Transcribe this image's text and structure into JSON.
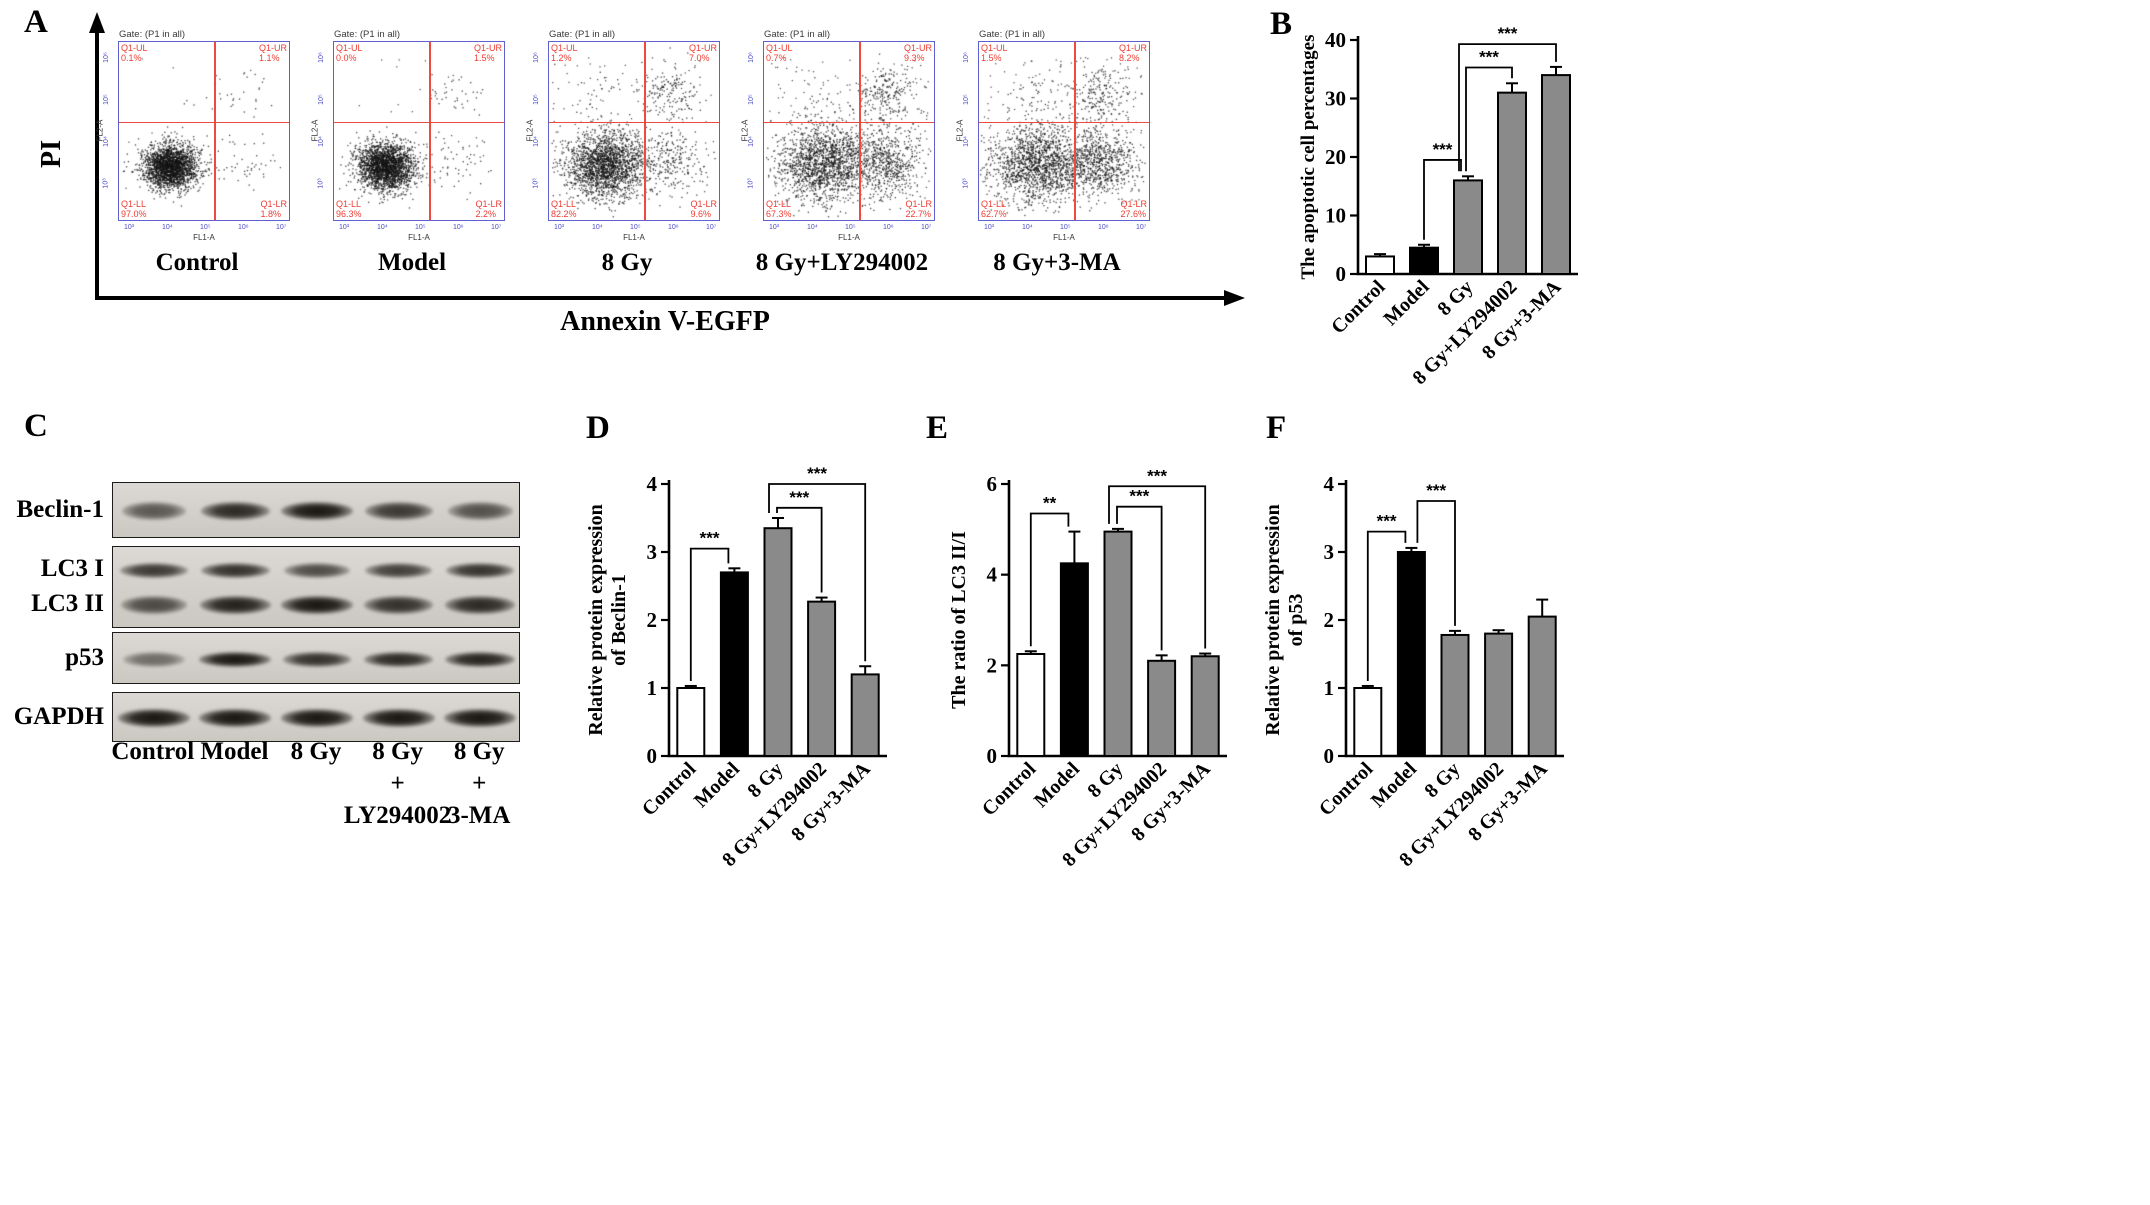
{
  "colors": {
    "flow_border": "#6060cf",
    "flow_tick": "#4b4bc8",
    "flow_quadrant_red": "#ef3b31",
    "bar_white": "#ffffff",
    "bar_black": "#000000",
    "bar_gray": "#8a8a8a"
  },
  "panel_a": {
    "label": "A",
    "y_axis_label": "PI",
    "x_axis_label": "Annexin V-EGFP",
    "gate_label": "Gate: (P1 in all)",
    "flow_y_ticks": [
      "10⁶",
      "10⁵",
      "10⁴",
      "10³"
    ],
    "flow_x_ticks": [
      "10³",
      "10⁴",
      "10⁵",
      "10⁶",
      "10⁷"
    ],
    "plots": [
      {
        "name": "Control",
        "x_label": "FL1-A",
        "y_label": "FL2-A",
        "ul": "Q1-UL",
        "ul_pct": "0.1%",
        "ur": "Q1-UR",
        "ur_pct": "1.1%",
        "ll": "Q1-LL",
        "ll_pct": "97.0%",
        "lr": "Q1-LR",
        "lr_pct": "1.8%",
        "pcts": {
          "ul": 0.1,
          "ur": 1.1,
          "ll": 97.0,
          "lr": 1.8
        },
        "spread": 1.0,
        "seed": 11
      },
      {
        "name": "Model",
        "x_label": "FL1-A",
        "y_label": "FL2-A",
        "ul": "Q1-UL",
        "ul_pct": "0.0%",
        "ur": "Q1-UR",
        "ur_pct": "1.5%",
        "ll": "Q1-LL",
        "ll_pct": "96.3%",
        "lr": "Q1-LR",
        "lr_pct": "2.2%",
        "pcts": {
          "ul": 0.0,
          "ur": 1.5,
          "ll": 96.3,
          "lr": 2.2
        },
        "spread": 1.05,
        "seed": 22
      },
      {
        "name": "8 Gy",
        "x_label": "FL1-A",
        "y_label": "FL2-A",
        "ul": "Q1-UL",
        "ul_pct": "1.2%",
        "ur": "Q1-UR",
        "ur_pct": "7.0%",
        "ll": "Q1-LL",
        "ll_pct": "82.2%",
        "lr": "Q1-LR",
        "lr_pct": "9.6%",
        "pcts": {
          "ul": 1.2,
          "ur": 7.0,
          "ll": 82.2,
          "lr": 9.6
        },
        "spread": 1.45,
        "seed": 33
      },
      {
        "name": "8 Gy+LY294002",
        "x_label": "FL1-A",
        "y_label": "FL2-A",
        "ul": "Q1-UL",
        "ul_pct": "0.7%",
        "ur": "Q1-UR",
        "ur_pct": "9.3%",
        "ll": "Q1-LL",
        "ll_pct": "67.3%",
        "lr": "Q1-LR",
        "lr_pct": "22.7%",
        "pcts": {
          "ul": 0.7,
          "ur": 9.3,
          "ll": 67.3,
          "lr": 22.7
        },
        "spread": 1.75,
        "seed": 44
      },
      {
        "name": "8 Gy+3-MA",
        "x_label": "FL1-A",
        "y_label": "FL2-A",
        "ul": "Q1-UL",
        "ul_pct": "1.5%",
        "ur": "Q1-UR",
        "ur_pct": "8.2%",
        "ll": "Q1-LL",
        "ll_pct": "62.7%",
        "lr": "Q1-LR",
        "lr_pct": "27.6%",
        "pcts": {
          "ul": 1.5,
          "ur": 8.2,
          "ll": 62.7,
          "lr": 27.6
        },
        "spread": 1.75,
        "seed": 55
      }
    ]
  },
  "panel_b": {
    "label": "B"
  },
  "panel_c": {
    "label": "C",
    "proteins": [
      {
        "name": "Beclin-1",
        "intensities": [
          0.5,
          0.85,
          1.0,
          0.75,
          0.55
        ]
      },
      {
        "name": "LC3 I",
        "intensities": [
          0.75,
          0.8,
          0.6,
          0.7,
          0.78
        ]
      },
      {
        "name": "LC3 II",
        "intensities": [
          0.6,
          0.92,
          1.0,
          0.8,
          0.85
        ]
      },
      {
        "name": "p53",
        "intensities": [
          0.35,
          1.0,
          0.8,
          0.85,
          0.9
        ]
      },
      {
        "name": "GAPDH",
        "intensities": [
          1.0,
          1.0,
          1.0,
          1.0,
          1.0
        ]
      }
    ],
    "lanes": [
      {
        "line1": "Control"
      },
      {
        "line1": "Model"
      },
      {
        "line1": "8 Gy"
      },
      {
        "line1": "8 Gy",
        "line2": "+",
        "line3": "LY294002"
      },
      {
        "line1": "8 Gy",
        "line2": "+",
        "line3": "3-MA"
      }
    ]
  },
  "panel_d": {
    "label": "D"
  },
  "panel_e": {
    "label": "E"
  },
  "panel_f": {
    "label": "F"
  },
  "chart_data": [
    {
      "id": "B",
      "type": "bar",
      "title": "",
      "ylabel": [
        "The apoptotic cell percentages"
      ],
      "categories": [
        "Control",
        "Model",
        "8 Gy",
        "8 Gy+LY294002",
        "8 Gy+3-MA"
      ],
      "values": [
        3.0,
        4.5,
        16.0,
        31.0,
        34.0
      ],
      "errors": [
        0.4,
        0.5,
        0.7,
        1.6,
        1.4
      ],
      "bar_colors": [
        "#ffffff",
        "#000000",
        "#8a8a8a",
        "#8a8a8a",
        "#8a8a8a"
      ],
      "ylim": [
        0,
        40
      ],
      "yticks": [
        0,
        10,
        20,
        30,
        40
      ],
      "grid": false,
      "legend": false,
      "brackets": [
        {
          "i1": 1,
          "i2": 2,
          "label": "***",
          "y": 19.5,
          "o2": -7
        },
        {
          "i1": 2,
          "i2": 3,
          "label": "***",
          "y": 35.3,
          "o1": -2
        },
        {
          "i1": 2,
          "i2": 4,
          "label": "***",
          "y": 39.3,
          "o1": -9
        }
      ]
    },
    {
      "id": "D",
      "type": "bar",
      "title": "",
      "ylabel": [
        "Relative protein expression",
        "of Beclin-1"
      ],
      "categories": [
        "Control",
        "Model",
        "8 Gy",
        "8 Gy+LY294002",
        "8 Gy+3-MA"
      ],
      "values": [
        1.0,
        2.7,
        3.35,
        2.27,
        1.2
      ],
      "errors": [
        0.03,
        0.06,
        0.15,
        0.06,
        0.12
      ],
      "bar_colors": [
        "#ffffff",
        "#000000",
        "#8a8a8a",
        "#8a8a8a",
        "#8a8a8a"
      ],
      "ylim": [
        0,
        4
      ],
      "yticks": [
        0,
        1,
        2,
        3,
        4
      ],
      "grid": false,
      "legend": false,
      "brackets": [
        {
          "i1": 0,
          "i2": 1,
          "label": "***",
          "y": 3.05,
          "o2": -6
        },
        {
          "i1": 2,
          "i2": 3,
          "label": "***",
          "y": 3.65,
          "o1": -1
        },
        {
          "i1": 2,
          "i2": 4,
          "label": "***",
          "y": 4.0,
          "o1": -9
        }
      ]
    },
    {
      "id": "E",
      "type": "bar",
      "title": "",
      "ylabel": [
        "The ratio of LC3 II/I"
      ],
      "categories": [
        "Control",
        "Model",
        "8 Gy",
        "8 Gy+LY294002",
        "8 Gy+3-MA"
      ],
      "values": [
        2.25,
        4.25,
        4.95,
        2.1,
        2.2
      ],
      "errors": [
        0.06,
        0.7,
        0.06,
        0.12,
        0.06
      ],
      "bar_colors": [
        "#ffffff",
        "#000000",
        "#8a8a8a",
        "#8a8a8a",
        "#8a8a8a"
      ],
      "ylim": [
        0,
        6
      ],
      "yticks": [
        0,
        2,
        4,
        6
      ],
      "grid": false,
      "legend": false,
      "brackets": [
        {
          "i1": 0,
          "i2": 1,
          "label": "**",
          "y": 5.35,
          "o2": -6
        },
        {
          "i1": 2,
          "i2": 3,
          "label": "***",
          "y": 5.5,
          "o1": -1
        },
        {
          "i1": 2,
          "i2": 4,
          "label": "***",
          "y": 5.95,
          "o1": -9
        }
      ]
    },
    {
      "id": "F",
      "type": "bar",
      "title": "",
      "ylabel": [
        "Relative protein expression",
        "of p53"
      ],
      "categories": [
        "Control",
        "Model",
        "8 Gy",
        "8 Gy+LY294002",
        "8 Gy+3-MA"
      ],
      "values": [
        1.0,
        3.0,
        1.78,
        1.8,
        2.05
      ],
      "errors": [
        0.03,
        0.06,
        0.06,
        0.05,
        0.25
      ],
      "bar_colors": [
        "#ffffff",
        "#000000",
        "#8a8a8a",
        "#8a8a8a",
        "#8a8a8a"
      ],
      "ylim": [
        0,
        4
      ],
      "yticks": [
        0,
        1,
        2,
        3,
        4
      ],
      "grid": false,
      "legend": false,
      "brackets": [
        {
          "i1": 0,
          "i2": 1,
          "label": "***",
          "y": 3.3,
          "o2": -6
        },
        {
          "i1": 1,
          "i2": 2,
          "label": "***",
          "y": 3.75,
          "o1": 6
        }
      ]
    }
  ]
}
